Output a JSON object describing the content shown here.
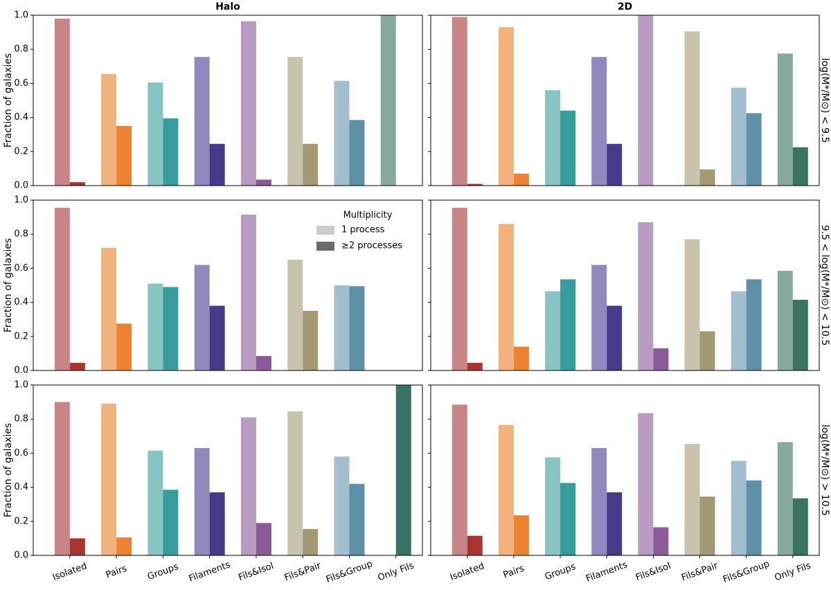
{
  "chart_data": [
    {
      "type": "bar",
      "title": "Halo",
      "ylabel": "Fraction of galaxies",
      "ylim": [
        0,
        1
      ],
      "yticks": [
        {
          "value": 0,
          "label": "0.0"
        },
        0.2,
        0.4,
        0.6,
        0.8,
        {
          "value": 1,
          "label": "1.0"
        }
      ],
      "series": [
        {
          "color": "#cccccc",
          "bar_colors": [
            "#c98585",
            "#f2b27e",
            "#88c4c4",
            "#9189bd",
            "#b89bc0",
            "#c8c3ad",
            "#a3bfcf",
            "#88a9a0"
          ],
          "values": [
            0.98,
            0.655,
            0.605,
            0.755,
            0.965,
            0.755,
            0.615,
            1.0
          ]
        },
        {
          "color": "#6b6b6b",
          "bar_colors": [
            "#a83434",
            "#eb8332",
            "#389c9c",
            "#463a8a",
            "#8c5a99",
            "#a39a75",
            "#5e90a8",
            "#3a7265"
          ],
          "values": [
            0.02,
            0.35,
            0.395,
            0.245,
            0.035,
            0.245,
            0.385,
            0
          ]
        }
      ]
    },
    {
      "type": "bar",
      "title": "2D",
      "row_label": "log(M*/M⊙) < 9.5",
      "ylim": [
        0,
        1
      ],
      "yticks": [
        0,
        0.2,
        0.4,
        0.6,
        0.8,
        1
      ],
      "series": [
        {
          "color": "#cccccc",
          "bar_colors": [
            "#c98585",
            "#f2b27e",
            "#88c4c4",
            "#9189bd",
            "#b89bc0",
            "#c8c3ad",
            "#a3bfcf",
            "#88a9a0"
          ],
          "values": [
            0.99,
            0.93,
            0.56,
            0.755,
            1.0,
            0.905,
            0.575,
            0.775
          ]
        },
        {
          "color": "#6b6b6b",
          "bar_colors": [
            "#a83434",
            "#eb8332",
            "#389c9c",
            "#463a8a",
            "#8c5a99",
            "#a39a75",
            "#5e90a8",
            "#3a7265"
          ],
          "values": [
            0.01,
            0.07,
            0.44,
            0.245,
            0,
            0.095,
            0.425,
            0.225
          ]
        }
      ]
    },
    {
      "type": "bar",
      "ylabel": "Fraction of galaxies",
      "legend_title": "Multiplicity",
      "legend": "upper right",
      "ylim": [
        0,
        1
      ],
      "yticks": [
        {
          "value": 0,
          "label": "0.0"
        },
        0.2,
        0.4,
        0.6,
        0.8,
        {
          "value": 1,
          "label": "1.0"
        }
      ],
      "series": [
        {
          "name": "1 process",
          "color": "#cccccc",
          "bar_colors": [
            "#c98585",
            "#f2b27e",
            "#88c4c4",
            "#9189bd",
            "#b89bc0",
            "#c8c3ad",
            "#a3bfcf",
            "#88a9a0"
          ],
          "values": [
            0.955,
            0.72,
            0.51,
            0.62,
            0.915,
            0.65,
            0.5,
            0
          ]
        },
        {
          "name": "≥2 processes",
          "color": "#6b6b6b",
          "bar_colors": [
            "#a83434",
            "#eb8332",
            "#389c9c",
            "#463a8a",
            "#8c5a99",
            "#a39a75",
            "#5e90a8",
            "#3a7265"
          ],
          "values": [
            0.045,
            0.275,
            0.49,
            0.38,
            0.085,
            0.35,
            0.495,
            0
          ]
        }
      ]
    },
    {
      "type": "bar",
      "row_label": "9.5 < log(M*/M⊙) < 10.5",
      "ylim": [
        0,
        1
      ],
      "yticks": [
        0,
        0.2,
        0.4,
        0.6,
        0.8,
        1
      ],
      "series": [
        {
          "color": "#cccccc",
          "bar_colors": [
            "#c98585",
            "#f2b27e",
            "#88c4c4",
            "#9189bd",
            "#b89bc0",
            "#c8c3ad",
            "#a3bfcf",
            "#88a9a0"
          ],
          "values": [
            0.955,
            0.86,
            0.465,
            0.62,
            0.87,
            0.77,
            0.465,
            0.585
          ]
        },
        {
          "color": "#6b6b6b",
          "bar_colors": [
            "#a83434",
            "#eb8332",
            "#389c9c",
            "#463a8a",
            "#8c5a99",
            "#a39a75",
            "#5e90a8",
            "#3a7265"
          ],
          "values": [
            0.045,
            0.14,
            0.535,
            0.38,
            0.13,
            0.23,
            0.535,
            0.415
          ]
        }
      ]
    },
    {
      "type": "bar",
      "ylabel": "Fraction of galaxies",
      "categories": [
        "Isolated",
        "Pairs",
        "Groups",
        "Filaments",
        "Fils&Isol",
        "Fils&Pair",
        "Fils&Group",
        "Only Fils"
      ],
      "ylim": [
        0,
        1
      ],
      "yticks": [
        {
          "value": 0,
          "label": "0.0"
        },
        0.2,
        0.4,
        0.6,
        0.8,
        {
          "value": 1,
          "label": "1.0"
        }
      ],
      "series": [
        {
          "color": "#cccccc",
          "bar_colors": [
            "#c98585",
            "#f2b27e",
            "#88c4c4",
            "#9189bd",
            "#b89bc0",
            "#c8c3ad",
            "#a3bfcf",
            "#88a9a0"
          ],
          "values": [
            0.9,
            0.89,
            0.615,
            0.63,
            0.81,
            0.845,
            0.58,
            0
          ]
        },
        {
          "color": "#6b6b6b",
          "bar_colors": [
            "#a83434",
            "#eb8332",
            "#389c9c",
            "#463a8a",
            "#8c5a99",
            "#a39a75",
            "#5e90a8",
            "#3a7265"
          ],
          "values": [
            0.1,
            0.105,
            0.385,
            0.37,
            0.19,
            0.155,
            0.42,
            1.0
          ]
        }
      ]
    },
    {
      "type": "bar",
      "row_label": "log(M*/M⊙) > 10.5",
      "categories": [
        "Isolated",
        "Pairs",
        "Groups",
        "Filaments",
        "Fils&Isol",
        "Fils&Pair",
        "Fils&Group",
        "Only Fils"
      ],
      "ylim": [
        0,
        1
      ],
      "yticks": [
        0,
        0.2,
        0.4,
        0.6,
        0.8,
        1
      ],
      "series": [
        {
          "color": "#cccccc",
          "bar_colors": [
            "#c98585",
            "#f2b27e",
            "#88c4c4",
            "#9189bd",
            "#b89bc0",
            "#c8c3ad",
            "#a3bfcf",
            "#88a9a0"
          ],
          "values": [
            0.885,
            0.765,
            0.575,
            0.63,
            0.835,
            0.655,
            0.555,
            0.665
          ]
        },
        {
          "color": "#6b6b6b",
          "bar_colors": [
            "#a83434",
            "#eb8332",
            "#389c9c",
            "#463a8a",
            "#8c5a99",
            "#a39a75",
            "#5e90a8",
            "#3a7265"
          ],
          "values": [
            0.115,
            0.235,
            0.425,
            0.37,
            0.165,
            0.345,
            0.44,
            0.335
          ]
        }
      ]
    }
  ]
}
